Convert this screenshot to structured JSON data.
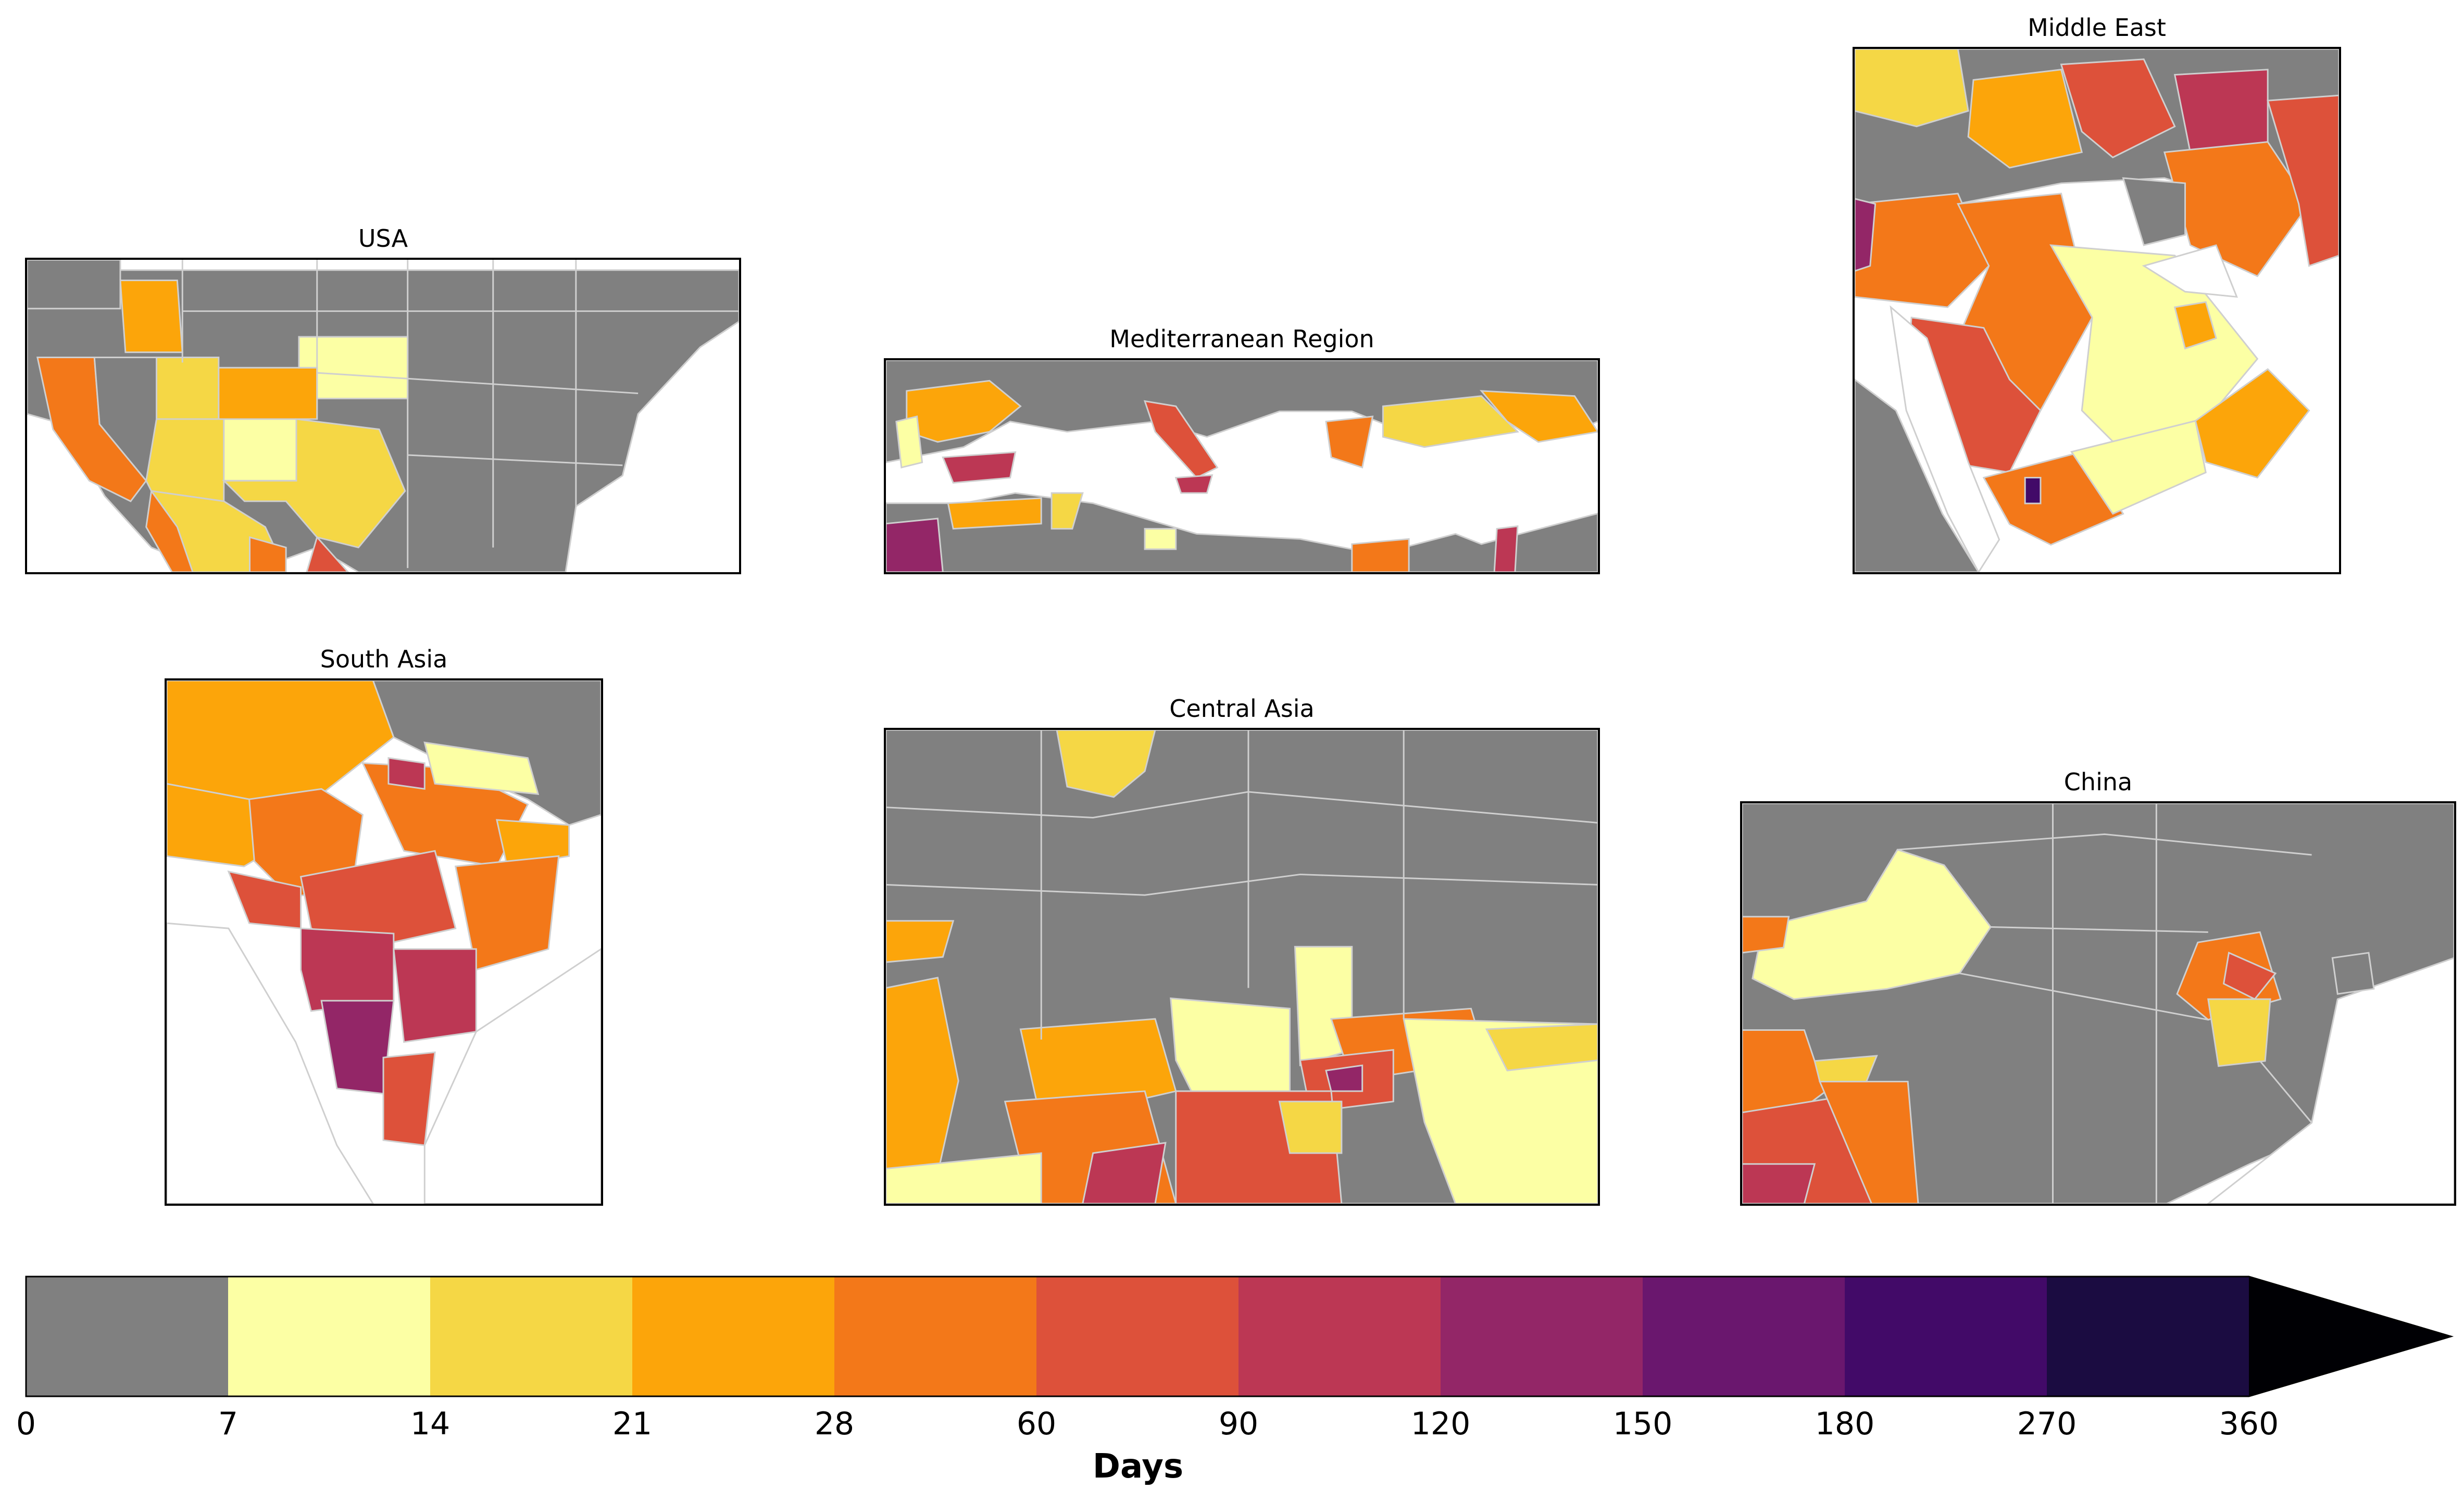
{
  "panels": {
    "usa": {
      "title": "USA"
    },
    "mediterranean": {
      "title": "Mediterranean Region"
    },
    "middle_east": {
      "title": "Middle East"
    },
    "south_asia": {
      "title": "South Asia"
    },
    "central_asia": {
      "title": "Central Asia"
    },
    "china": {
      "title": "China"
    }
  },
  "colorbar": {
    "label": "Days",
    "ticks": [
      "0",
      "7",
      "14",
      "21",
      "28",
      "60",
      "90",
      "120",
      "150",
      "180",
      "270",
      "360"
    ],
    "bins": [
      {
        "from": 0,
        "to": 7,
        "color": "#808080"
      },
      {
        "from": 7,
        "to": 14,
        "color": "#fcffa4"
      },
      {
        "from": 14,
        "to": 21,
        "color": "#f5d745"
      },
      {
        "from": 21,
        "to": 28,
        "color": "#fca50a"
      },
      {
        "from": 28,
        "to": 60,
        "color": "#f37819"
      },
      {
        "from": 60,
        "to": 90,
        "color": "#dd513a"
      },
      {
        "from": 90,
        "to": 120,
        "color": "#bc3754"
      },
      {
        "from": 120,
        "to": 150,
        "color": "#932667"
      },
      {
        "from": 150,
        "to": 180,
        "color": "#6a176e"
      },
      {
        "from": 180,
        "to": 270,
        "color": "#420a68"
      },
      {
        "from": 270,
        "to": 360,
        "color": "#1b0c41"
      },
      {
        "from": 360,
        "to": null,
        "color": "#000004"
      }
    ],
    "extend": "max"
  },
  "colors": {
    "no_data": "#808080",
    "border": "#d0d0d0",
    "frame": "#000000"
  }
}
